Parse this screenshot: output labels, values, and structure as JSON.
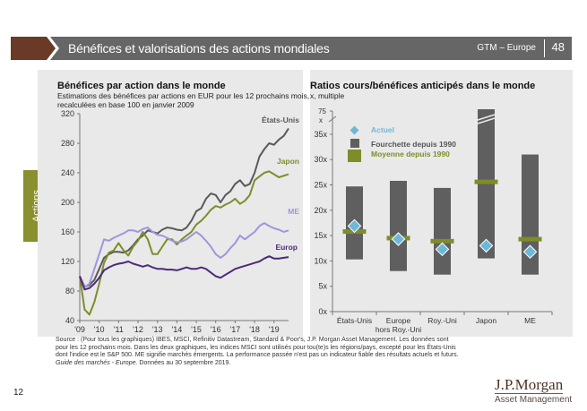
{
  "header": {
    "title": "Bénéfices et valorisations des actions mondiales",
    "gtm": "GTM – Europe",
    "page": "48"
  },
  "side_tab": "Actions",
  "left_chart": {
    "title": "Bénéfices par action dans le monde",
    "subtitle_1": "Estimations des bénéfices par actions en EUR pour les 12 prochains mois,",
    "subtitle_2": "recalculées en base 100 en janvier 2009"
  },
  "right_chart": {
    "title": "Ratios cours/bénéfices anticipés dans le monde",
    "subtitle": "x, multiple"
  },
  "source": "Source : (Pour tous les graphiques) IBES, MSCI, Refinitiv Datastream, Standard & Poor's, J.P. Morgan Asset Management. Les données sont pour les 12 prochains mois. Dans les deux graphiques, les indices MSCI sont utilisés pour tou(te)s les régions/pays, excepté pour les États-Unis dont l'indice est le S&P 500. ME signifie marchés émergents. La performance passée n'est pas un indicateur fiable des résultats actuels et futurs.",
  "source_italic": "Guide des marchés - Europe.",
  "source_date": "Données au 30 septembre 2019.",
  "page_number": "12",
  "logo": {
    "line1": "J.P.Morgan",
    "line2": "Asset Management"
  },
  "chart_data": [
    {
      "type": "line",
      "title": "Bénéfices par action dans le monde",
      "xlabel": "",
      "ylabel": "",
      "x_ticks": [
        "'09",
        "'10",
        "'11",
        "'12",
        "'13",
        "'14",
        "'15",
        "'16",
        "'17",
        "'18",
        "'19"
      ],
      "y_ticks": [
        40,
        80,
        120,
        160,
        200,
        240,
        280,
        320
      ],
      "ylim": [
        40,
        320
      ],
      "xlim": [
        2009.0,
        2019.75
      ],
      "x": [
        2009.0,
        2009.25,
        2009.5,
        2009.75,
        2010.0,
        2010.25,
        2010.5,
        2010.75,
        2011.0,
        2011.25,
        2011.5,
        2011.75,
        2012.0,
        2012.25,
        2012.5,
        2012.75,
        2013.0,
        2013.25,
        2013.5,
        2013.75,
        2014.0,
        2014.25,
        2014.5,
        2014.75,
        2015.0,
        2015.25,
        2015.5,
        2015.75,
        2016.0,
        2016.25,
        2016.5,
        2016.75,
        2017.0,
        2017.25,
        2017.5,
        2017.75,
        2018.0,
        2018.25,
        2018.5,
        2018.75,
        2019.0,
        2019.25,
        2019.5,
        2019.75
      ],
      "series": [
        {
          "name": "États-Unis",
          "color": "#595959",
          "values": [
            100,
            86,
            88,
            95,
            110,
            125,
            130,
            133,
            133,
            132,
            135,
            142,
            150,
            155,
            162,
            160,
            158,
            163,
            166,
            165,
            163,
            162,
            166,
            175,
            188,
            192,
            205,
            212,
            210,
            200,
            210,
            215,
            225,
            230,
            222,
            225,
            240,
            262,
            272,
            280,
            278,
            285,
            290,
            300
          ]
        },
        {
          "name": "Japon",
          "color": "#7f8c2a",
          "values": [
            100,
            55,
            48,
            65,
            90,
            118,
            132,
            135,
            145,
            135,
            128,
            140,
            148,
            160,
            150,
            130,
            130,
            140,
            150,
            150,
            143,
            150,
            155,
            160,
            170,
            175,
            182,
            190,
            195,
            193,
            197,
            200,
            205,
            198,
            202,
            210,
            230,
            235,
            240,
            242,
            238,
            234,
            236,
            238
          ]
        },
        {
          "name": "ME",
          "color": "#9f95dc",
          "values": [
            100,
            85,
            90,
            110,
            130,
            150,
            148,
            152,
            155,
            158,
            162,
            162,
            160,
            164,
            166,
            160,
            156,
            155,
            152,
            148,
            146,
            147,
            150,
            155,
            160,
            155,
            148,
            140,
            130,
            125,
            130,
            138,
            145,
            155,
            150,
            155,
            160,
            168,
            172,
            168,
            165,
            163,
            160,
            162
          ]
        },
        {
          "name": "Europe",
          "color": "#4b2a7a",
          "values": [
            100,
            82,
            84,
            90,
            98,
            108,
            112,
            115,
            117,
            118,
            120,
            117,
            115,
            113,
            115,
            112,
            110,
            110,
            109,
            109,
            108,
            110,
            112,
            110,
            110,
            112,
            110,
            105,
            100,
            98,
            102,
            106,
            110,
            112,
            114,
            116,
            118,
            120,
            124,
            127,
            124,
            124,
            125,
            126
          ]
        }
      ],
      "annotations": [
        "États-Unis",
        "Japon",
        "ME",
        "Europ"
      ]
    },
    {
      "type": "bar",
      "title": "Ratios cours/bénéfices anticipés dans le monde",
      "subtitle": "x, multiple",
      "categories": [
        "États-Unis",
        "Europe hors Roy.-Uni",
        "Roy.-Uni",
        "Japon",
        "ME"
      ],
      "category_lines": [
        [
          "États-Unis"
        ],
        [
          "Europe",
          "hors Roy.-Uni"
        ],
        [
          "Roy.-Uni"
        ],
        [
          "Japon"
        ],
        [
          "ME"
        ]
      ],
      "y_ticks": [
        "0x",
        "5x",
        "10x",
        "15x",
        "20x",
        "25x",
        "30x",
        "35x"
      ],
      "y_break_label": [
        "75",
        "x"
      ],
      "ylim": [
        0,
        37
      ],
      "axis_break": true,
      "series": [
        {
          "name": "Fourchette depuis 1990",
          "color": "#5f5f5f",
          "low": [
            10.3,
            8.0,
            7.3,
            10.5,
            7.3
          ],
          "high": [
            24.7,
            25.8,
            24.4,
            75,
            31.0
          ]
        },
        {
          "name": "Moyenne depuis 1990",
          "color": "#7f8c2a",
          "values": [
            15.8,
            14.5,
            13.9,
            25.6,
            14.3
          ]
        },
        {
          "name": "Actuel",
          "color": "#6fb7d6",
          "values": [
            16.9,
            14.3,
            12.3,
            13.0,
            11.8
          ]
        }
      ],
      "legend": [
        "Actuel",
        "Fourchette depuis 1990",
        "Moyenne depuis 1990"
      ],
      "legend_position": "top-left"
    }
  ]
}
